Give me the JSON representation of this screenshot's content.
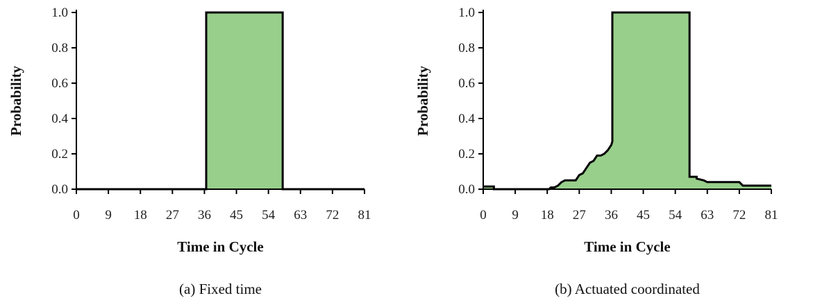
{
  "chart_data": [
    {
      "type": "area",
      "caption": "(a)  Fixed time",
      "xlabel": "Time in Cycle",
      "ylabel": "Probability",
      "xlim": [
        0,
        81
      ],
      "ylim": [
        0,
        1
      ],
      "xticks": [
        0,
        9,
        18,
        27,
        36,
        45,
        54,
        63,
        72,
        81
      ],
      "yticks": [
        "0.0",
        "0.2",
        "0.4",
        "0.6",
        "0.8",
        "1.0"
      ],
      "fill_color": "#98cf8b",
      "line_color": "#000000",
      "x": [
        0,
        36.5,
        36.5,
        58,
        58,
        81
      ],
      "y": [
        0,
        0,
        1.0,
        1.0,
        0,
        0
      ]
    },
    {
      "type": "area",
      "caption": "(b)  Actuated coordinated",
      "xlabel": "Time in Cycle",
      "ylabel": "Probability",
      "xlim": [
        0,
        81
      ],
      "ylim": [
        0,
        1
      ],
      "xticks": [
        0,
        9,
        18,
        27,
        36,
        45,
        54,
        63,
        72,
        81
      ],
      "yticks": [
        "0.0",
        "0.2",
        "0.4",
        "0.6",
        "0.8",
        "1.0"
      ],
      "fill_color": "#98cf8b",
      "line_color": "#000000",
      "x": [
        0,
        3,
        3,
        18.5,
        19,
        20,
        21,
        22,
        23,
        24,
        26,
        27,
        28,
        29,
        30,
        31,
        32,
        33,
        34,
        35,
        36,
        36.3,
        36.3,
        58,
        58,
        60,
        60,
        62,
        63,
        72,
        73,
        81
      ],
      "y": [
        0.015,
        0.015,
        0,
        0,
        0.01,
        0.01,
        0.02,
        0.04,
        0.05,
        0.05,
        0.05,
        0.08,
        0.09,
        0.12,
        0.15,
        0.16,
        0.19,
        0.19,
        0.2,
        0.22,
        0.25,
        0.27,
        1.0,
        1.0,
        0.07,
        0.07,
        0.06,
        0.05,
        0.04,
        0.04,
        0.02,
        0.02
      ]
    }
  ]
}
